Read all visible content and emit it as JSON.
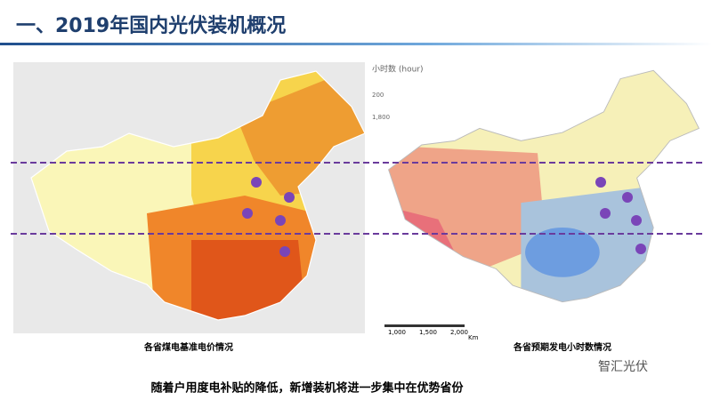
{
  "header": {
    "title": "一、2019年国内光伏装机概况"
  },
  "maps": [
    {
      "caption": "各省煤电基准电价情况"
    },
    {
      "caption": "各省预期发电小时数情况",
      "legend_title": "小时数 (hour)",
      "legend_labels": [
        "200",
        "1,800"
      ],
      "scale_labels": [
        "1,000",
        "1,500",
        "2,000"
      ],
      "scale_unit": "Km"
    }
  ],
  "footer": {
    "text": "随着户用度电补贴的降低，新增装机将进一步集中在优势省份",
    "watermark": "智汇光伏"
  }
}
